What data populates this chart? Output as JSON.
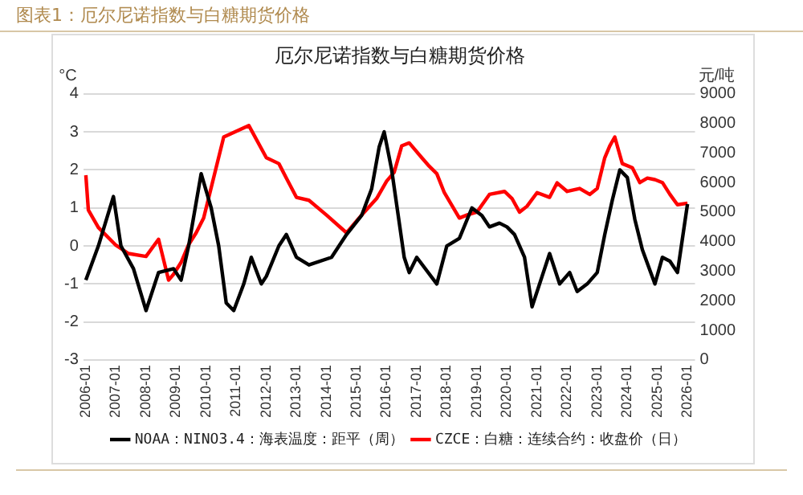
{
  "chart_data": {
    "type": "line",
    "title": "图表1：厄尔尼诺指数与白糖期货价格",
    "subtitle": "厄尔尼诺指数与白糖期货价格",
    "ylabel": "°C",
    "y2label": "元/吨",
    "xlim": [
      "2005-12",
      "2026-04"
    ],
    "xticks": [
      "2006-01",
      "2007-01",
      "2008-01",
      "2009-01",
      "2010-01",
      "2011-01",
      "2012-01",
      "2013-01",
      "2014-01",
      "2015-01",
      "2016-01",
      "2017-01",
      "2018-01",
      "2019-01",
      "2020-01",
      "2021-01",
      "2022-01",
      "2023-01",
      "2024-01",
      "2025-01",
      "2026-01"
    ],
    "ylim": [
      -3,
      4
    ],
    "yticks": [
      -3,
      -2,
      -1,
      0,
      1,
      2,
      3,
      4
    ],
    "y2lim": [
      0,
      9000
    ],
    "y2ticks": [
      0,
      1000,
      2000,
      3000,
      4000,
      5000,
      6000,
      7000,
      8000,
      9000
    ],
    "grid": "y",
    "legend": "bottom",
    "marker": "none",
    "line_style": "solid",
    "series": [
      {
        "name": "NOAA：NINO3.4：海表温度：距平（周）",
        "color": "#000000",
        "x": [
          "2006-01",
          "2006-06",
          "2006-12",
          "2007-03",
          "2007-08",
          "2008-01",
          "2008-06",
          "2008-12",
          "2009-03",
          "2009-06",
          "2009-11",
          "2010-03",
          "2010-06",
          "2010-09",
          "2010-12",
          "2011-04",
          "2011-07",
          "2011-11",
          "2012-01",
          "2012-06",
          "2012-09",
          "2013-01",
          "2013-06",
          "2014-03",
          "2014-09",
          "2015-03",
          "2015-07",
          "2015-10",
          "2015-12",
          "2016-03",
          "2016-08",
          "2016-10",
          "2017-01",
          "2017-09",
          "2018-01",
          "2018-06",
          "2018-11",
          "2019-03",
          "2019-06",
          "2019-10",
          "2020-01",
          "2020-04",
          "2020-08",
          "2020-11",
          "2021-03",
          "2021-06",
          "2021-10",
          "2022-02",
          "2022-05",
          "2022-09",
          "2023-01",
          "2023-04",
          "2023-07",
          "2023-10",
          "2024-01",
          "2024-04",
          "2024-07",
          "2024-12",
          "2025-03",
          "2025-06",
          "2025-09",
          "2025-11",
          "2026-01"
        ],
        "values": [
          -0.9,
          0,
          1.3,
          0,
          -0.6,
          -1.7,
          -0.7,
          -0.6,
          -0.9,
          0,
          1.9,
          1.0,
          0,
          -1.5,
          -1.7,
          -1.0,
          -0.3,
          -1.0,
          -0.8,
          0,
          0.3,
          -0.3,
          -0.5,
          -0.3,
          0.3,
          0.8,
          1.5,
          2.6,
          3.0,
          2.0,
          -0.3,
          -0.7,
          -0.3,
          -1.0,
          0,
          0.2,
          1.0,
          0.8,
          0.5,
          0.6,
          0.5,
          0.3,
          -0.3,
          -1.6,
          -0.8,
          -0.2,
          -1.0,
          -0.7,
          -1.2,
          -1.0,
          -0.7,
          0.3,
          1.2,
          2.0,
          1.8,
          0.7,
          -0.1,
          -1.0,
          -0.3,
          -0.4,
          -0.7,
          0.2,
          1.1
        ]
      },
      {
        "name": "CZCE：白糖：连续合约：收盘价（日）",
        "color": "#ff0000",
        "axis": "y2",
        "x": [
          "2006-01",
          "2006-02",
          "2006-06",
          "2007-01",
          "2007-06",
          "2008-01",
          "2008-06",
          "2008-10",
          "2008-12",
          "2009-03",
          "2009-06",
          "2009-09",
          "2009-12",
          "2010-08",
          "2011-06",
          "2012-01",
          "2012-06",
          "2012-09",
          "2013-01",
          "2013-06",
          "2014-01",
          "2014-09",
          "2015-03",
          "2015-09",
          "2016-01",
          "2016-04",
          "2016-07",
          "2016-10",
          "2017-03",
          "2017-06",
          "2017-09",
          "2017-12",
          "2018-06",
          "2018-09",
          "2019-01",
          "2019-06",
          "2019-12",
          "2020-03",
          "2020-06",
          "2020-09",
          "2021-01",
          "2021-06",
          "2021-09",
          "2022-01",
          "2022-06",
          "2022-10",
          "2023-01",
          "2023-04",
          "2023-06",
          "2023-08",
          "2023-11",
          "2024-03",
          "2024-06",
          "2024-09",
          "2024-12",
          "2025-03",
          "2025-06",
          "2025-09",
          "2026-01"
        ],
        "values": [
          6250,
          5070,
          4480,
          3880,
          3600,
          3500,
          4080,
          2700,
          2900,
          3300,
          3900,
          4300,
          4800,
          7540,
          7930,
          6840,
          6640,
          6150,
          5500,
          5400,
          4900,
          4300,
          4900,
          5460,
          6050,
          6350,
          7240,
          7340,
          6840,
          6550,
          6300,
          5660,
          4800,
          4900,
          5000,
          5600,
          5700,
          5460,
          5000,
          5200,
          5660,
          5500,
          5990,
          5700,
          5800,
          5600,
          5800,
          6840,
          7240,
          7540,
          6640,
          6500,
          6000,
          6150,
          6100,
          6000,
          5600,
          5250,
          5300
        ]
      }
    ]
  }
}
